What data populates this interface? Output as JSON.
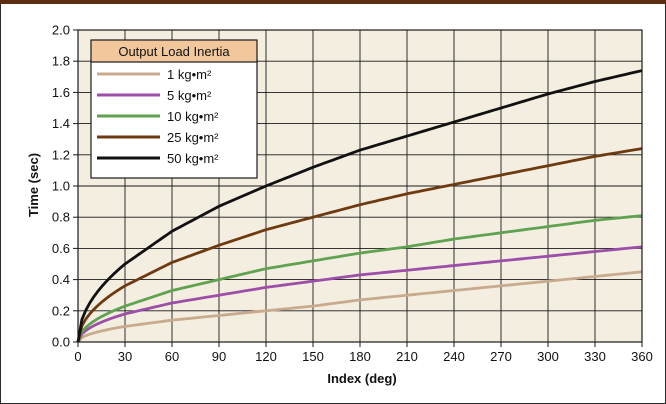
{
  "chart_data": {
    "type": "line",
    "title": "",
    "xlabel": "Index (deg)",
    "ylabel": "Time (sec)",
    "xlim": [
      0,
      360
    ],
    "ylim": [
      0,
      2.0
    ],
    "x_ticks": [
      "0",
      "30",
      "60",
      "90",
      "120",
      "150",
      "180",
      "210",
      "240",
      "270",
      "300",
      "330",
      "360"
    ],
    "y_ticks": [
      "0.0",
      "0.2",
      "0.4",
      "0.6",
      "0.8",
      "1.0",
      "1.2",
      "1.4",
      "1.6",
      "1.8",
      "2.0"
    ],
    "grid": true,
    "legend": {
      "title": "Output Load Inertia",
      "placement": "top-left"
    },
    "x": [
      0,
      30,
      60,
      90,
      120,
      150,
      180,
      210,
      240,
      270,
      300,
      330,
      360
    ],
    "series": [
      {
        "name": "1 kg•m²",
        "color": "#c8ab8e",
        "values": [
          0.0,
          0.1,
          0.14,
          0.17,
          0.2,
          0.23,
          0.27,
          0.3,
          0.33,
          0.36,
          0.39,
          0.42,
          0.45
        ]
      },
      {
        "name": "5 kg•m²",
        "color": "#9b4fa8",
        "values": [
          0.0,
          0.18,
          0.25,
          0.3,
          0.35,
          0.39,
          0.43,
          0.46,
          0.49,
          0.52,
          0.55,
          0.58,
          0.61
        ]
      },
      {
        "name": "10 kg•m²",
        "color": "#5fa24f",
        "values": [
          0.0,
          0.23,
          0.33,
          0.4,
          0.47,
          0.52,
          0.57,
          0.61,
          0.66,
          0.7,
          0.74,
          0.78,
          0.81
        ]
      },
      {
        "name": "25 kg•m²",
        "color": "#6e3a10",
        "values": [
          0.0,
          0.36,
          0.51,
          0.62,
          0.72,
          0.8,
          0.88,
          0.95,
          1.01,
          1.07,
          1.13,
          1.19,
          1.24
        ]
      },
      {
        "name": "50 kg•m²",
        "color": "#111111",
        "values": [
          0.0,
          0.5,
          0.71,
          0.87,
          1.0,
          1.12,
          1.23,
          1.32,
          1.41,
          1.5,
          1.59,
          1.67,
          1.74
        ]
      }
    ]
  },
  "colors": {
    "plot_background": "#f4eee1",
    "grid": "#1a1a1a",
    "legend_title_fill": "#f2c79b",
    "frame_accent": "#5a2e0e"
  }
}
